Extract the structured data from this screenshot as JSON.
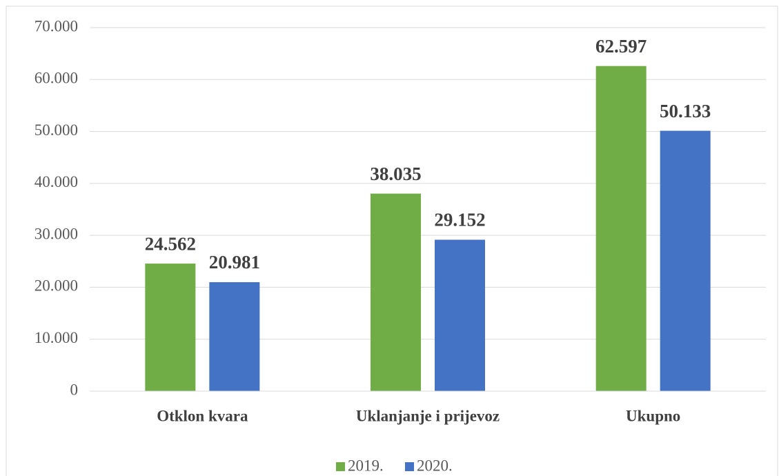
{
  "chart_data": {
    "type": "bar",
    "categories": [
      "Otklon kvara",
      "Uklanjanje i prijevoz",
      "Ukupno"
    ],
    "series": [
      {
        "name": "2019.",
        "color": "#70ad47",
        "values": [
          24562,
          38035,
          62597
        ],
        "value_labels": [
          "24.562",
          "38.035",
          "62.597"
        ]
      },
      {
        "name": "2020.",
        "color": "#4472c4",
        "values": [
          20981,
          29152,
          50133
        ],
        "value_labels": [
          "20.981",
          "29.152",
          "50.133"
        ]
      }
    ],
    "ylim": [
      0,
      70000
    ],
    "yticks": [
      0,
      {
        "value": 10000,
        "label": "10.000"
      },
      {
        "value": 20000,
        "label": "20.000"
      },
      {
        "value": 30000,
        "label": "30.000"
      },
      {
        "value": 40000,
        "label": "40.000"
      },
      {
        "value": 50000,
        "label": "50.000"
      },
      {
        "value": 60000,
        "label": "60.000"
      },
      {
        "value": 70000,
        "label": "70.000"
      }
    ],
    "grid": true,
    "legend": "bottom"
  }
}
